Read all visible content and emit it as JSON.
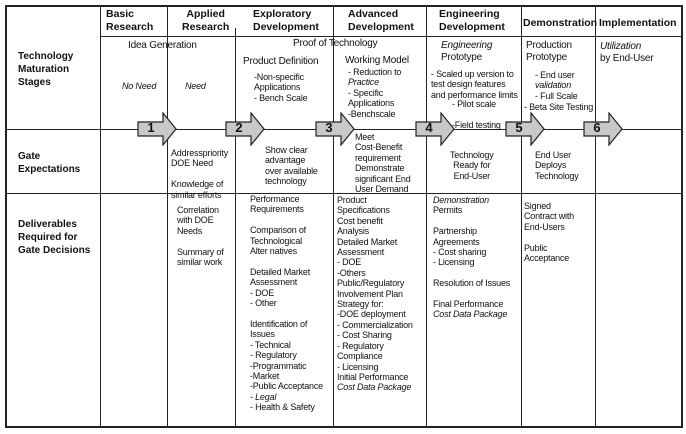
{
  "headers": [
    [
      "Basic",
      "Research"
    ],
    [
      "Applied",
      "Research"
    ],
    [
      "Exploratory",
      "Development"
    ],
    [
      "Advanced",
      "Development"
    ],
    [
      "Engineering",
      "Development"
    ],
    [
      "Demonstration"
    ],
    [
      "Implementation"
    ]
  ],
  "row_labels": [
    [
      "Technology",
      "Maturation",
      "Stages"
    ],
    [
      "Gate",
      "Expectations"
    ],
    [
      "Deliverables",
      "Required for",
      "Gate Decisions"
    ]
  ],
  "gates": [
    "1",
    "2",
    "3",
    "4",
    "5",
    "6"
  ],
  "arrow_fill": "#c8c8c8",
  "maturation": {
    "idea_generation": [
      "Idea Generation"
    ],
    "proof_of_technology": [
      "Proof of Technology"
    ],
    "basic": [
      "No Need"
    ],
    "applied": [
      "Need"
    ],
    "exploratory_title": [
      "Product Definition"
    ],
    "exploratory": [
      "-Non-specific",
      "Applications",
      "- Bench Scale"
    ],
    "advanced_title": [
      "Working Model"
    ],
    "advanced": [
      " - Reduction to",
      "Practice",
      "  - Specific",
      "  Applications",
      "  -Benchscale"
    ],
    "engineering_title": [
      "Engineering",
      "Prototype"
    ],
    "engineering": [
      "- Scaled up version to",
      "test design features",
      "and performance limits"
    ],
    "engineering_sub": [
      "- Pilot scale",
      "",
      "-Field testing"
    ],
    "demonstration_title": [
      "Production",
      "Prototype"
    ],
    "demonstration": [
      "- End user",
      "validation",
      "  - Full Scale"
    ],
    "demonstration_sub": [
      "- Beta Site Testing"
    ],
    "implementation": [
      "Utilization",
      "by End-User"
    ]
  },
  "gate_expectations": {
    "applied": [
      "Addresspriority",
      "DOE Need",
      "",
      "Knowledge of",
      "similar efforts"
    ],
    "exploratory": [
      "Show clear",
      "advantage",
      "over available",
      "technology"
    ],
    "advanced": [
      "Meet",
      " Cost-Benefit",
      "  requirement",
      "Demonstrate",
      "significant End",
      " User Demand"
    ],
    "engineering": [
      "Technology",
      "Ready for",
      "End-User"
    ],
    "demonstration": [
      "End User",
      "Deploys",
      "Technology"
    ]
  },
  "deliverables": {
    "applied": [
      "Correlation",
      "with DOE",
      "Needs",
      "",
      "Summary of",
      "similar work"
    ],
    "exploratory": [
      "Performance",
      "Requirements",
      "",
      "Comparison of",
      "Technological",
      "Alter natives",
      "",
      "Detailed Market",
      "Assessment",
      "- DOE",
      "- Other",
      "",
      "Identification of",
      "Issues",
      "- Technical",
      "- Regulatory",
      "-Programmatic",
      "-Market",
      "-Public Acceptance",
      "- Legal",
      "- Health & Safety"
    ],
    "advanced": [
      "Product",
      "Specifications",
      "Cost  benefit",
      "Analysis",
      "Detailed Market",
      "Assessment",
      " - DOE",
      " -Others",
      "Public/Regulatory",
      "Involvement Plan",
      "Strategy for:",
      "-DOE deployment",
      "- Commercialization",
      "- Cost Sharing",
      "- Regulatory",
      "Compliance",
      "- Licensing",
      "Initial Performance",
      "Cost Data Package"
    ],
    "engineering": [
      "Demonstration",
      "Permits",
      "",
      "Partnership",
      "Agreements",
      "- Cost sharing",
      "- Licensing",
      "",
      "Resolution of Issues",
      "",
      "Final Performance",
      "Cost Data Package"
    ],
    "demonstration": [
      "Signed",
      "Contract with",
      "End-Users",
      "",
      "Public",
      "Acceptance"
    ]
  }
}
